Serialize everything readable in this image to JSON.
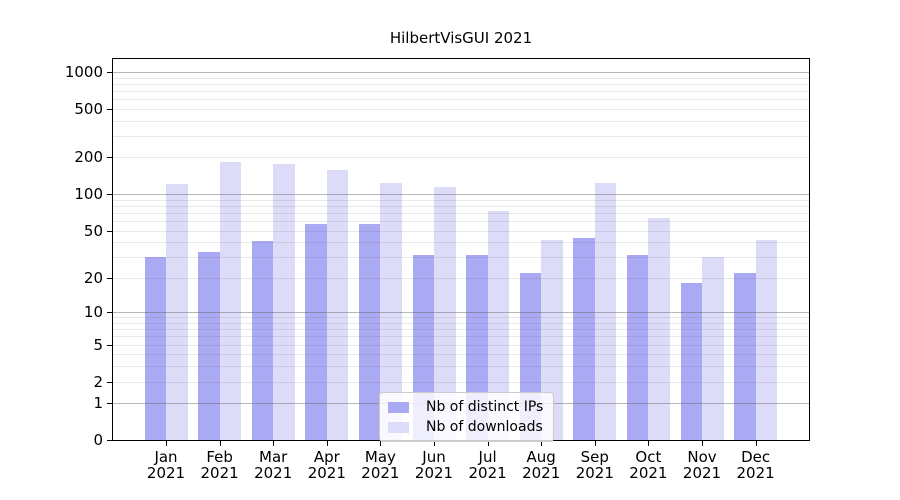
{
  "chart_data": {
    "type": "bar",
    "title": "HilbertVisGUI 2021",
    "categories": [
      "Jan 2021",
      "Feb 2021",
      "Mar 2021",
      "Apr 2021",
      "May 2021",
      "Jun 2021",
      "Jul 2021",
      "Aug 2021",
      "Sep 2021",
      "Oct 2021",
      "Nov 2021",
      "Dec 2021"
    ],
    "category_months": [
      "Jan",
      "Feb",
      "Mar",
      "Apr",
      "May",
      "Jun",
      "Jul",
      "Aug",
      "Sep",
      "Oct",
      "Nov",
      "Dec"
    ],
    "category_year": "2021",
    "series": [
      {
        "name": "Nb of distinct IPs",
        "color": "#a9a9f4",
        "values": [
          30,
          33,
          41,
          57,
          57,
          31,
          31,
          22,
          43,
          31,
          18,
          22
        ]
      },
      {
        "name": "Nb of downloads",
        "color": "#dcdcf9",
        "values": [
          120,
          182,
          176,
          158,
          123,
          114,
          72,
          42,
          123,
          64,
          30,
          42
        ]
      }
    ],
    "y_axis": {
      "scale": "log1p",
      "ticks": [
        0,
        1,
        2,
        5,
        10,
        20,
        50,
        100,
        200,
        500,
        1000
      ],
      "major_gridlines": [
        1,
        10,
        100,
        1000
      ]
    },
    "xlabel": "",
    "ylabel": "",
    "ylim": [
      0,
      1270
    ],
    "grid": true,
    "legend_position": "bottom-center"
  }
}
